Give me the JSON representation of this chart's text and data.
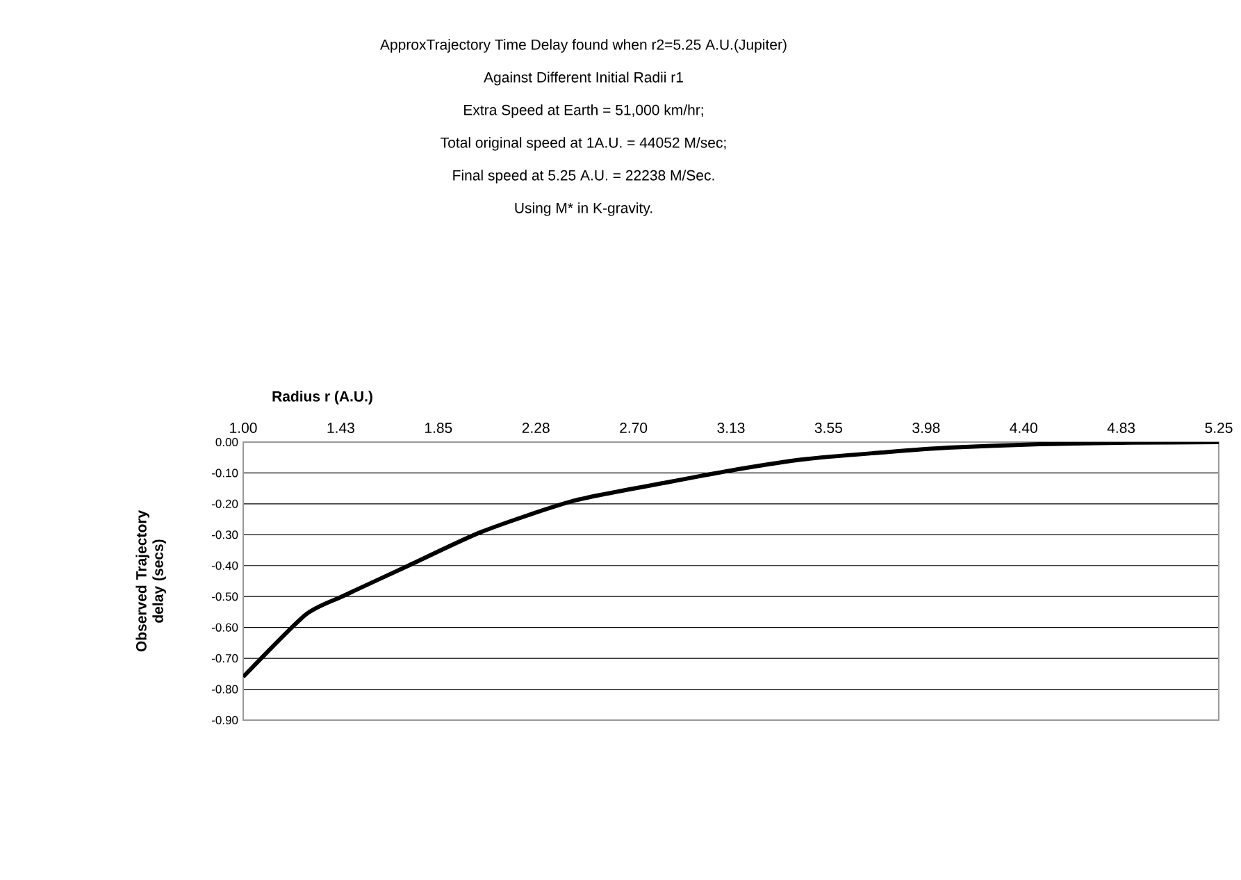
{
  "chart_data": {
    "type": "line",
    "title": "ApproxTrajectory Time Delay found when r2=5.25 A.U.(Jupiter)",
    "subtitle": "Against Different Initial Radii r1",
    "annotations": [
      "Extra Speed at Earth = 51,000 km/hr;",
      "Total original speed at 1A.U. = 44052 M/sec;",
      "Final speed at 5.25 A.U. = 22238 M/Sec.",
      "Using M* in K-gravity."
    ],
    "xlabel": "Radius r (A.U.)",
    "ylabel": "Observed Trajectory delay (secs)",
    "x": [
      1.0,
      1.27,
      1.43,
      1.72,
      2.04,
      2.44,
      2.85,
      3.17,
      3.45,
      3.76,
      4.07,
      4.47,
      4.87,
      5.25
    ],
    "series": [
      {
        "color": "#000000",
        "values": [
          -0.76,
          -0.56,
          -0.5,
          -0.4,
          -0.29,
          -0.19,
          -0.13,
          -0.086,
          -0.055,
          -0.035,
          -0.018,
          -0.007,
          -0.002,
          0.0
        ]
      }
    ],
    "xlim": [
      1.0,
      5.25
    ],
    "xticks": [
      {
        "value": 1.0,
        "label": "1.00"
      },
      {
        "value": 1.425,
        "label": "1.43"
      },
      {
        "value": 1.85,
        "label": "1.85"
      },
      {
        "value": 2.275,
        "label": "2.28"
      },
      {
        "value": 2.7,
        "label": "2.70"
      },
      {
        "value": 3.125,
        "label": "3.13"
      },
      {
        "value": 3.55,
        "label": "3.55"
      },
      {
        "value": 3.975,
        "label": "3.98"
      },
      {
        "value": 4.4,
        "label": "4.40"
      },
      {
        "value": 4.825,
        "label": "4.83"
      },
      {
        "value": 5.25,
        "label": "5.25"
      }
    ],
    "ylim": [
      -0.9,
      0.0
    ],
    "yticks": [
      {
        "value": -0.9,
        "label": "-0.90"
      },
      {
        "value": -0.8,
        "label": "-0.80"
      },
      {
        "value": -0.7,
        "label": "-0.70"
      },
      {
        "value": -0.6,
        "label": "-0.60"
      },
      {
        "value": -0.5,
        "label": "-0.50"
      },
      {
        "value": -0.4,
        "label": "-0.40"
      },
      {
        "value": -0.3,
        "label": "-0.30"
      },
      {
        "value": -0.2,
        "label": "-0.20"
      },
      {
        "value": -0.1,
        "label": "-0.10"
      },
      {
        "value": 0.0,
        "label": "0.00"
      }
    ],
    "grid": "y",
    "marker": "none",
    "line_style": "solid"
  }
}
